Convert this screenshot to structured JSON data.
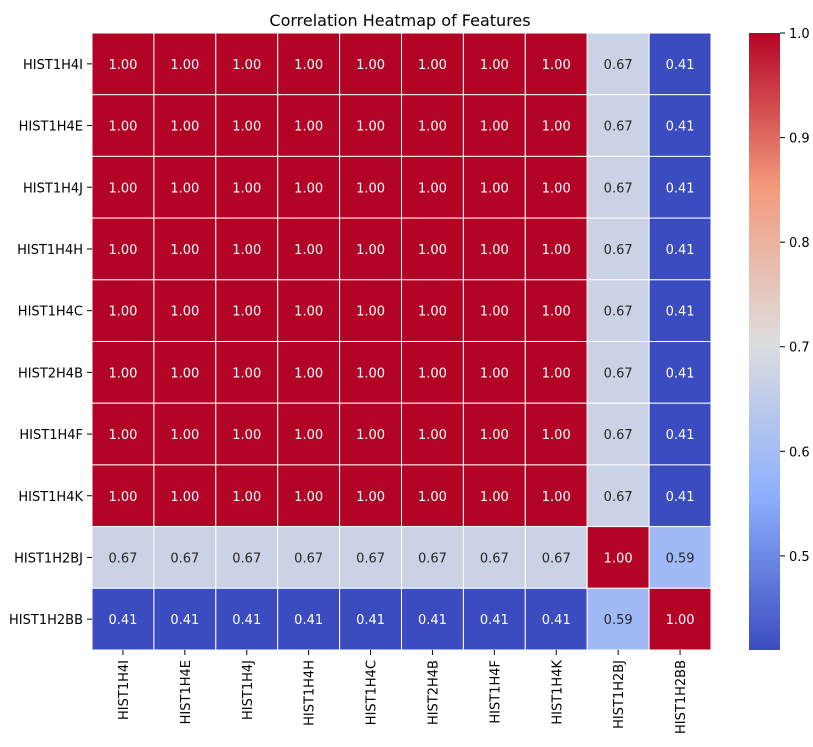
{
  "chart_data": {
    "type": "heatmap",
    "title": "Correlation Heatmap of Features",
    "xlabel": "",
    "ylabel": "",
    "row_labels": [
      "HIST1H4I",
      "HIST1H4E",
      "HIST1H4J",
      "HIST1H4H",
      "HIST1H4C",
      "HIST2H4B",
      "HIST1H4F",
      "HIST1H4K",
      "HIST1H2BJ",
      "HIST1H2BB"
    ],
    "col_labels": [
      "HIST1H4I",
      "HIST1H4E",
      "HIST1H4J",
      "HIST1H4H",
      "HIST1H4C",
      "HIST2H4B",
      "HIST1H4F",
      "HIST1H4K",
      "HIST1H2BJ",
      "HIST1H2BB"
    ],
    "values": [
      [
        1.0,
        1.0,
        1.0,
        1.0,
        1.0,
        1.0,
        1.0,
        1.0,
        0.67,
        0.41
      ],
      [
        1.0,
        1.0,
        1.0,
        1.0,
        1.0,
        1.0,
        1.0,
        1.0,
        0.67,
        0.41
      ],
      [
        1.0,
        1.0,
        1.0,
        1.0,
        1.0,
        1.0,
        1.0,
        1.0,
        0.67,
        0.41
      ],
      [
        1.0,
        1.0,
        1.0,
        1.0,
        1.0,
        1.0,
        1.0,
        1.0,
        0.67,
        0.41
      ],
      [
        1.0,
        1.0,
        1.0,
        1.0,
        1.0,
        1.0,
        1.0,
        1.0,
        0.67,
        0.41
      ],
      [
        1.0,
        1.0,
        1.0,
        1.0,
        1.0,
        1.0,
        1.0,
        1.0,
        0.67,
        0.41
      ],
      [
        1.0,
        1.0,
        1.0,
        1.0,
        1.0,
        1.0,
        1.0,
        1.0,
        0.67,
        0.41
      ],
      [
        1.0,
        1.0,
        1.0,
        1.0,
        1.0,
        1.0,
        1.0,
        1.0,
        0.67,
        0.41
      ],
      [
        0.67,
        0.67,
        0.67,
        0.67,
        0.67,
        0.67,
        0.67,
        0.67,
        1.0,
        0.59
      ],
      [
        0.41,
        0.41,
        0.41,
        0.41,
        0.41,
        0.41,
        0.41,
        0.41,
        0.59,
        1.0
      ]
    ],
    "colormap": "coolwarm",
    "colorbar": {
      "vmin": 0.41,
      "vmax": 1.0,
      "ticks": [
        0.5,
        0.6,
        0.7,
        0.8,
        0.9,
        1.0
      ],
      "tick_labels": [
        "0.5",
        "0.6",
        "0.7",
        "0.8",
        "0.9",
        "1.0"
      ]
    },
    "annotations": true,
    "annotation_format": "2 decimals",
    "grid": false
  }
}
